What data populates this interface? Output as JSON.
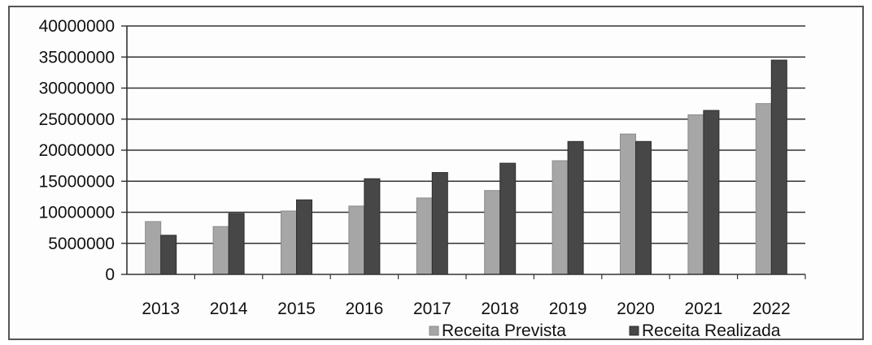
{
  "chart_data": {
    "type": "bar",
    "categories": [
      "2013",
      "2014",
      "2015",
      "2016",
      "2017",
      "2018",
      "2019",
      "2020",
      "2021",
      "2022"
    ],
    "series": [
      {
        "name": "Receita Prevista",
        "color": "#a6a6a6",
        "values": [
          8500000,
          7700000,
          10200000,
          11000000,
          12300000,
          13500000,
          18300000,
          22600000,
          25700000,
          27500000
        ]
      },
      {
        "name": "Receita Realizada",
        "color": "#474747",
        "values": [
          6300000,
          9800000,
          12000000,
          15400000,
          16400000,
          17900000,
          21400000,
          21400000,
          26400000,
          34500000
        ]
      }
    ],
    "ylim": [
      0,
      40000000
    ],
    "yticks": [
      0,
      5000000,
      10000000,
      15000000,
      20000000,
      25000000,
      30000000,
      35000000,
      40000000
    ],
    "ytick_labels": [
      "0",
      "5000000",
      "10000000",
      "15000000",
      "20000000",
      "25000000",
      "30000000",
      "35000000",
      "40000000"
    ],
    "grid": true,
    "legend": "bottom-right",
    "title": "",
    "xlabel": "",
    "ylabel": ""
  }
}
